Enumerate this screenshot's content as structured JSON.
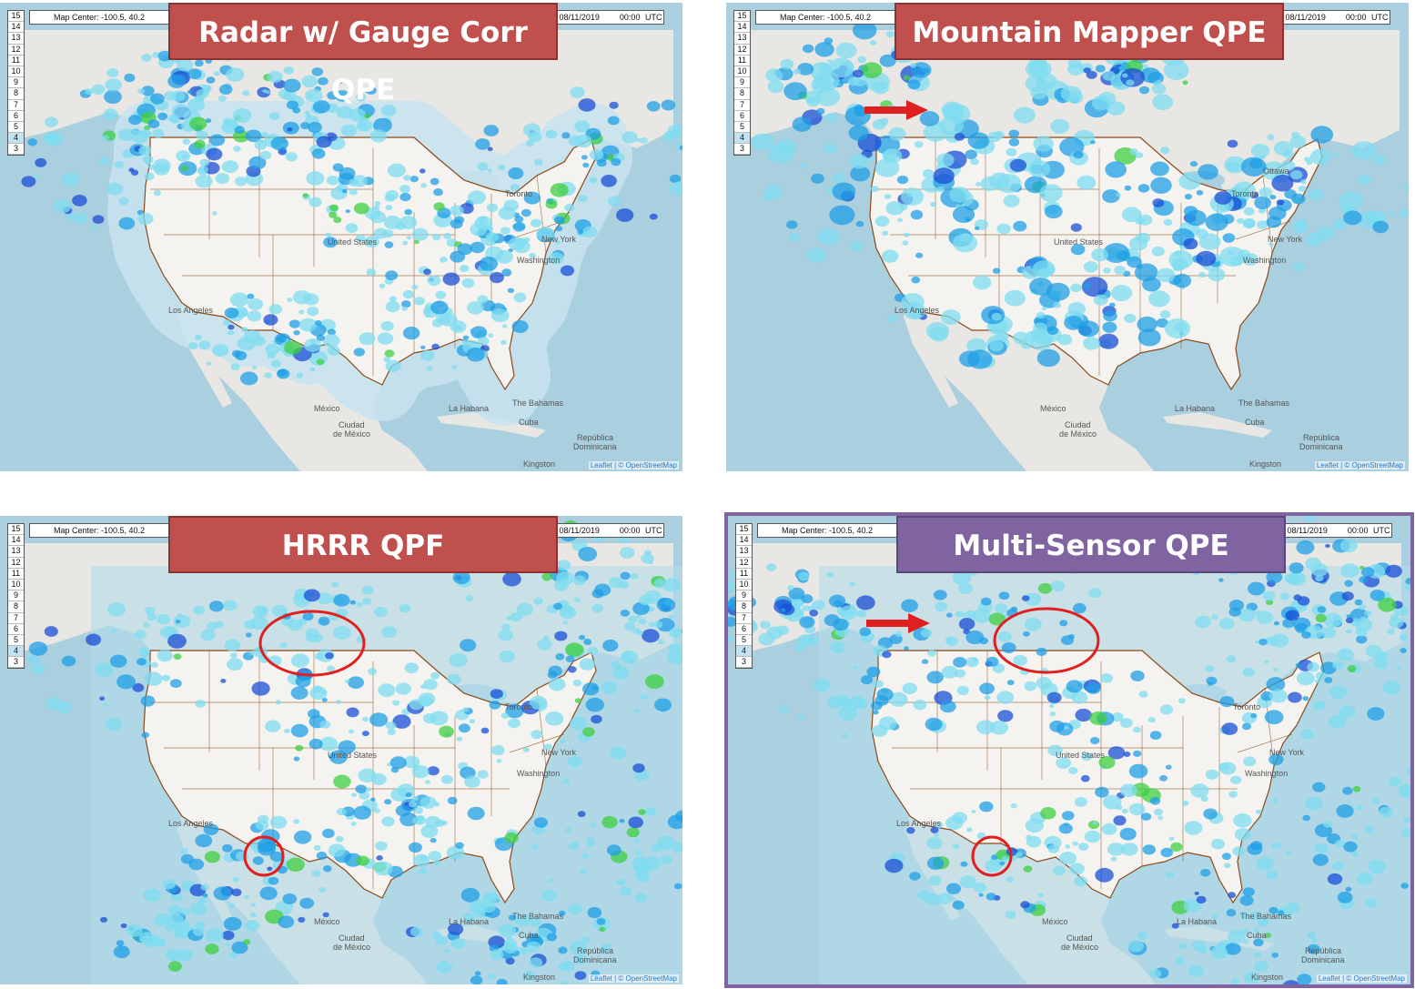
{
  "zoom_levels": [
    "15",
    "14",
    "13",
    "12",
    "11",
    "10",
    "9",
    "8",
    "7",
    "6",
    "5",
    "4",
    "3"
  ],
  "active_zoom": "4",
  "map_center": "Map Center: -100.5, 40.2",
  "datetime": "08/11/2019    00:00 UTC",
  "attribution": "Leaflet | © OpenStreetMap",
  "place_labels": {
    "los_angeles": "Los Angeles",
    "toronto": "Toronto",
    "new_york": "New York",
    "washington": "Washington",
    "united_states": "United States",
    "mexico": "México",
    "ciudad_de_mexico_1": "Ciudad",
    "ciudad_de_mexico_2": "de México",
    "la_habana": "La Habana",
    "bahamas": "The Bahamas",
    "cuba": "Cuba",
    "kingston": "Kingston",
    "ottawa": "Ottawa",
    "republica_1": "República",
    "republica_2": "Dominicana"
  },
  "panels": [
    {
      "title": "Radar w/ Gauge Corr QPE",
      "accent": "#c0504d"
    },
    {
      "title": "Mountain Mapper QPE",
      "accent": "#c0504d"
    },
    {
      "title": "HRRR QPF",
      "accent": "#c0504d"
    },
    {
      "title": "Multi-Sensor QPE",
      "accent": "#8064a2"
    }
  ],
  "colors": {
    "ocean": "#aacfdf",
    "land": "#e9e7e3",
    "conus": "#f5f3ef",
    "precip_light": "#7fdcf0",
    "precip_mid": "#1f9fe6",
    "precip_heavy": "#1a4fd6",
    "precip_green": "#3fcf3f",
    "annotation": "#e02020"
  }
}
